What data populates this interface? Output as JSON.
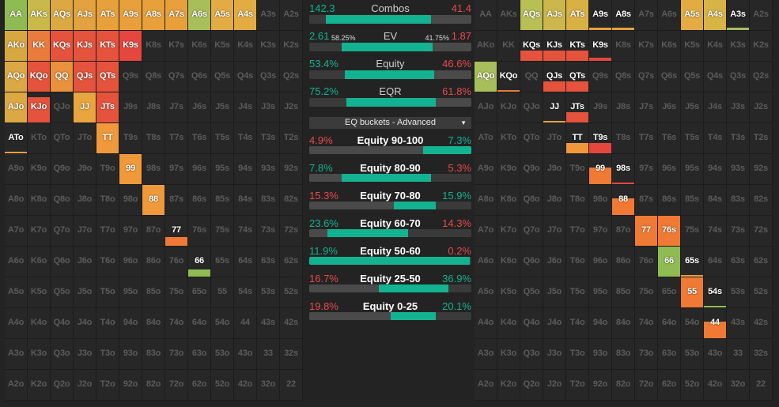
{
  "left_range": {
    "cells": [
      [
        "AA",
        "AKs",
        "AQs",
        "AJs",
        "ATs",
        "A9s",
        "A8s",
        "A7s",
        "A6s",
        "A5s",
        "A4s",
        "A3s",
        "A2s"
      ],
      [
        "AKo",
        "KK",
        "KQs",
        "KJs",
        "KTs",
        "K9s",
        "K8s",
        "K7s",
        "K6s",
        "K5s",
        "K4s",
        "K3s",
        "K2s"
      ],
      [
        "AQo",
        "KQo",
        "QQ",
        "QJs",
        "QTs",
        "Q9s",
        "Q8s",
        "Q7s",
        "Q6s",
        "Q5s",
        "Q4s",
        "Q3s",
        "Q2s"
      ],
      [
        "AJo",
        "KJo",
        "QJo",
        "JJ",
        "JTs",
        "J9s",
        "J8s",
        "J7s",
        "J6s",
        "J5s",
        "J4s",
        "J3s",
        "J2s"
      ],
      [
        "ATo",
        "KTo",
        "QTo",
        "JTo",
        "TT",
        "T9s",
        "T8s",
        "T7s",
        "T6s",
        "T5s",
        "T4s",
        "T3s",
        "T2s"
      ],
      [
        "A9o",
        "K9o",
        "Q9o",
        "J9o",
        "T9o",
        "99",
        "98s",
        "97s",
        "96s",
        "95s",
        "94s",
        "93s",
        "92s"
      ],
      [
        "A8o",
        "K8o",
        "Q8o",
        "J8o",
        "T8o",
        "98o",
        "88",
        "87s",
        "86s",
        "85s",
        "84s",
        "83s",
        "82s"
      ],
      [
        "A7o",
        "K7o",
        "Q7o",
        "J7o",
        "T7o",
        "97o",
        "87o",
        "77",
        "76s",
        "75s",
        "74s",
        "73s",
        "72s"
      ],
      [
        "A6o",
        "K6o",
        "Q6o",
        "J6o",
        "T6o",
        "96o",
        "86o",
        "76o",
        "66",
        "65s",
        "64s",
        "63s",
        "62s"
      ],
      [
        "A5o",
        "K5o",
        "Q5o",
        "J5o",
        "T5o",
        "95o",
        "85o",
        "75o",
        "65o",
        "55",
        "54s",
        "53s",
        "52s"
      ],
      [
        "A4o",
        "K4o",
        "Q4o",
        "J4o",
        "T4o",
        "94o",
        "84o",
        "74o",
        "64o",
        "54o",
        "44",
        "43s",
        "42s"
      ],
      [
        "A3o",
        "K3o",
        "Q3o",
        "J3o",
        "T3o",
        "93o",
        "83o",
        "73o",
        "63o",
        "53o",
        "43o",
        "33",
        "32s"
      ],
      [
        "A2o",
        "K2o",
        "Q2o",
        "J2o",
        "T2o",
        "92o",
        "82o",
        "72o",
        "62o",
        "52o",
        "42o",
        "32o",
        "22"
      ]
    ],
    "highlights": [
      {
        "hand": "AA",
        "freq": 1.0,
        "color": "#8fbc52"
      },
      {
        "hand": "AKs",
        "freq": 1.0,
        "color": "#c9b94a"
      },
      {
        "hand": "AQs",
        "freq": 1.0,
        "color": "#dba843"
      },
      {
        "hand": "AJs",
        "freq": 1.0,
        "color": "#e2a23f"
      },
      {
        "hand": "ATs",
        "freq": 1.0,
        "color": "#e8a03b"
      },
      {
        "hand": "A9s",
        "freq": 1.0,
        "color": "#e8a03b"
      },
      {
        "hand": "A8s",
        "freq": 1.0,
        "color": "#e8a03b"
      },
      {
        "hand": "A7s",
        "freq": 1.0,
        "color": "#e8a03b"
      },
      {
        "hand": "A6s",
        "freq": 1.0,
        "color": "#a8be5a"
      },
      {
        "hand": "A5s",
        "freq": 1.0,
        "color": "#e3ac43"
      },
      {
        "hand": "A4s",
        "freq": 1.0,
        "color": "#e3ac43"
      },
      {
        "hand": "AKo",
        "freq": 1.0,
        "color": "#d8a840"
      },
      {
        "hand": "KK",
        "freq": 1.0,
        "color": "#e97c3c"
      },
      {
        "hand": "KQs",
        "freq": 1.0,
        "color": "#e5533d"
      },
      {
        "hand": "KJs",
        "freq": 1.0,
        "color": "#e5533d"
      },
      {
        "hand": "KTs",
        "freq": 1.0,
        "color": "#e5533d"
      },
      {
        "hand": "K9s",
        "freq": 1.0,
        "color": "#e5473f"
      },
      {
        "hand": "AQo",
        "freq": 1.0,
        "color": "#dba843"
      },
      {
        "hand": "KQo",
        "freq": 1.0,
        "color": "#e5533d"
      },
      {
        "hand": "QQ",
        "freq": 1.0,
        "color": "#e9913c"
      },
      {
        "hand": "QJs",
        "freq": 1.0,
        "color": "#e5533d"
      },
      {
        "hand": "QTs",
        "freq": 1.0,
        "color": "#e5533d"
      },
      {
        "hand": "AJo",
        "freq": 1.0,
        "color": "#dba843"
      },
      {
        "hand": "KJo",
        "freq": 0.85,
        "color": "#e5533d"
      },
      {
        "hand": "JJ",
        "freq": 1.0,
        "color": "#e9a53e"
      },
      {
        "hand": "JTs",
        "freq": 1.0,
        "color": "#e5533d"
      },
      {
        "hand": "ATo",
        "freq": 0.05,
        "color": "#e8a03b"
      },
      {
        "hand": "TT",
        "freq": 1.0,
        "color": "#f0993a"
      },
      {
        "hand": "99",
        "freq": 1.0,
        "color": "#f0993a"
      },
      {
        "hand": "88",
        "freq": 1.0,
        "color": "#f0993a"
      },
      {
        "hand": "77",
        "freq": 0.3,
        "color": "#f07a33"
      },
      {
        "hand": "66",
        "freq": 0.25,
        "color": "#8fbc52"
      }
    ]
  },
  "right_range": {
    "highlights": [
      {
        "hand": "AQs",
        "freq": 1.0,
        "color": "#b7bf55"
      },
      {
        "hand": "AJs",
        "freq": 1.0,
        "color": "#cdb74d"
      },
      {
        "hand": "ATs",
        "freq": 1.0,
        "color": "#d9b044"
      },
      {
        "hand": "A9s",
        "freq": 0.08,
        "color": "#e8a03b"
      },
      {
        "hand": "A8s",
        "freq": 0.08,
        "color": "#e8a03b"
      },
      {
        "hand": "A5s",
        "freq": 1.0,
        "color": "#e3ac43"
      },
      {
        "hand": "A4s",
        "freq": 1.0,
        "color": "#d8b446"
      },
      {
        "hand": "A3s",
        "freq": 0.08,
        "color": "#a8be5a"
      },
      {
        "hand": "KQs",
        "freq": 0.35,
        "color": "#e5533d"
      },
      {
        "hand": "KJs",
        "freq": 0.35,
        "color": "#e5533d"
      },
      {
        "hand": "KTs",
        "freq": 0.35,
        "color": "#e5533d"
      },
      {
        "hand": "K9s",
        "freq": 0.1,
        "color": "#e5473f"
      },
      {
        "hand": "AQo",
        "freq": 1.0,
        "color": "#a8be5a"
      },
      {
        "hand": "KQo",
        "freq": 0.06,
        "color": "#e97c3c"
      },
      {
        "hand": "QJs",
        "freq": 0.35,
        "color": "#e5533d"
      },
      {
        "hand": "QTs",
        "freq": 0.35,
        "color": "#e5533d"
      },
      {
        "hand": "JJ",
        "freq": 0.06,
        "color": "#e9a53e"
      },
      {
        "hand": "JTs",
        "freq": 0.35,
        "color": "#e5533d"
      },
      {
        "hand": "TT",
        "freq": 0.35,
        "color": "#f0993a"
      },
      {
        "hand": "T9s",
        "freq": 0.35,
        "color": "#e5473f"
      },
      {
        "hand": "99",
        "freq": 0.55,
        "color": "#f07a33"
      },
      {
        "hand": "98s",
        "freq": 0.06,
        "color": "#e5473f"
      },
      {
        "hand": "88",
        "freq": 0.55,
        "color": "#f07a33"
      },
      {
        "hand": "77",
        "freq": 1.0,
        "color": "#f07a33"
      },
      {
        "hand": "76s",
        "freq": 1.0,
        "color": "#f07a33"
      },
      {
        "hand": "66",
        "freq": 1.0,
        "color": "#8fbc52"
      },
      {
        "hand": "65s",
        "freq": 0.05,
        "color": "#e8a03b"
      },
      {
        "hand": "55",
        "freq": 1.0,
        "color": "#f07a33"
      },
      {
        "hand": "54s",
        "freq": 0.05,
        "color": "#8fbc52"
      },
      {
        "hand": "44",
        "freq": 0.55,
        "color": "#f07a33"
      }
    ]
  },
  "stats": [
    {
      "title": "Combos",
      "left": "142.3",
      "right": "41.4",
      "left_pct": "",
      "right_pct": "",
      "red_frac": 0.1,
      "green_start": 0.1,
      "green_frac": 0.65
    },
    {
      "title": "EV",
      "left": "2.61",
      "right": "1.87",
      "left_pct": "58.25%",
      "right_pct": "41.75%",
      "red_frac": 0.2,
      "green_start": 0.2,
      "green_frac": 0.56
    },
    {
      "title": "Equity",
      "left": "53.4%",
      "right": "46.6%",
      "left_pct": "",
      "right_pct": "",
      "red_frac": 0.22,
      "green_start": 0.22,
      "green_frac": 0.55
    },
    {
      "title": "EQR",
      "left": "75.2%",
      "right": "61.8%",
      "left_pct": "",
      "right_pct": "",
      "red_frac": 0.23,
      "green_start": 0.23,
      "green_frac": 0.55
    }
  ],
  "dropdown": {
    "label": "EQ buckets - Advanced"
  },
  "buckets": [
    {
      "title": "Equity 90-100",
      "left": "4.9%",
      "right": "7.3%",
      "left_color": "red",
      "right_color": "grn",
      "green_start": 0.7,
      "green_frac": 0.3
    },
    {
      "title": "Equity 80-90",
      "left": "7.8%",
      "right": "5.3%",
      "left_color": "grn",
      "right_color": "red",
      "green_start": 0.2,
      "green_frac": 0.55
    },
    {
      "title": "Equity 70-80",
      "left": "15.3%",
      "right": "15.9%",
      "left_color": "red",
      "right_color": "grn",
      "green_start": 0.52,
      "green_frac": 0.26
    },
    {
      "title": "Equity 60-70",
      "left": "23.6%",
      "right": "14.3%",
      "left_color": "grn",
      "right_color": "red",
      "green_start": 0.11,
      "green_frac": 0.5
    },
    {
      "title": "Equity 50-60",
      "left": "11.9%",
      "right": "0.2%",
      "left_color": "grn",
      "right_color": "red",
      "green_start": 0.0,
      "green_frac": 0.99
    },
    {
      "title": "Equity 25-50",
      "left": "16.7%",
      "right": "36.9%",
      "left_color": "red",
      "right_color": "grn",
      "green_start": 0.43,
      "green_frac": 0.43
    },
    {
      "title": "Equity 0-25",
      "left": "19.8%",
      "right": "20.1%",
      "left_color": "red",
      "right_color": "grn",
      "green_start": 0.5,
      "green_frac": 0.28
    }
  ]
}
